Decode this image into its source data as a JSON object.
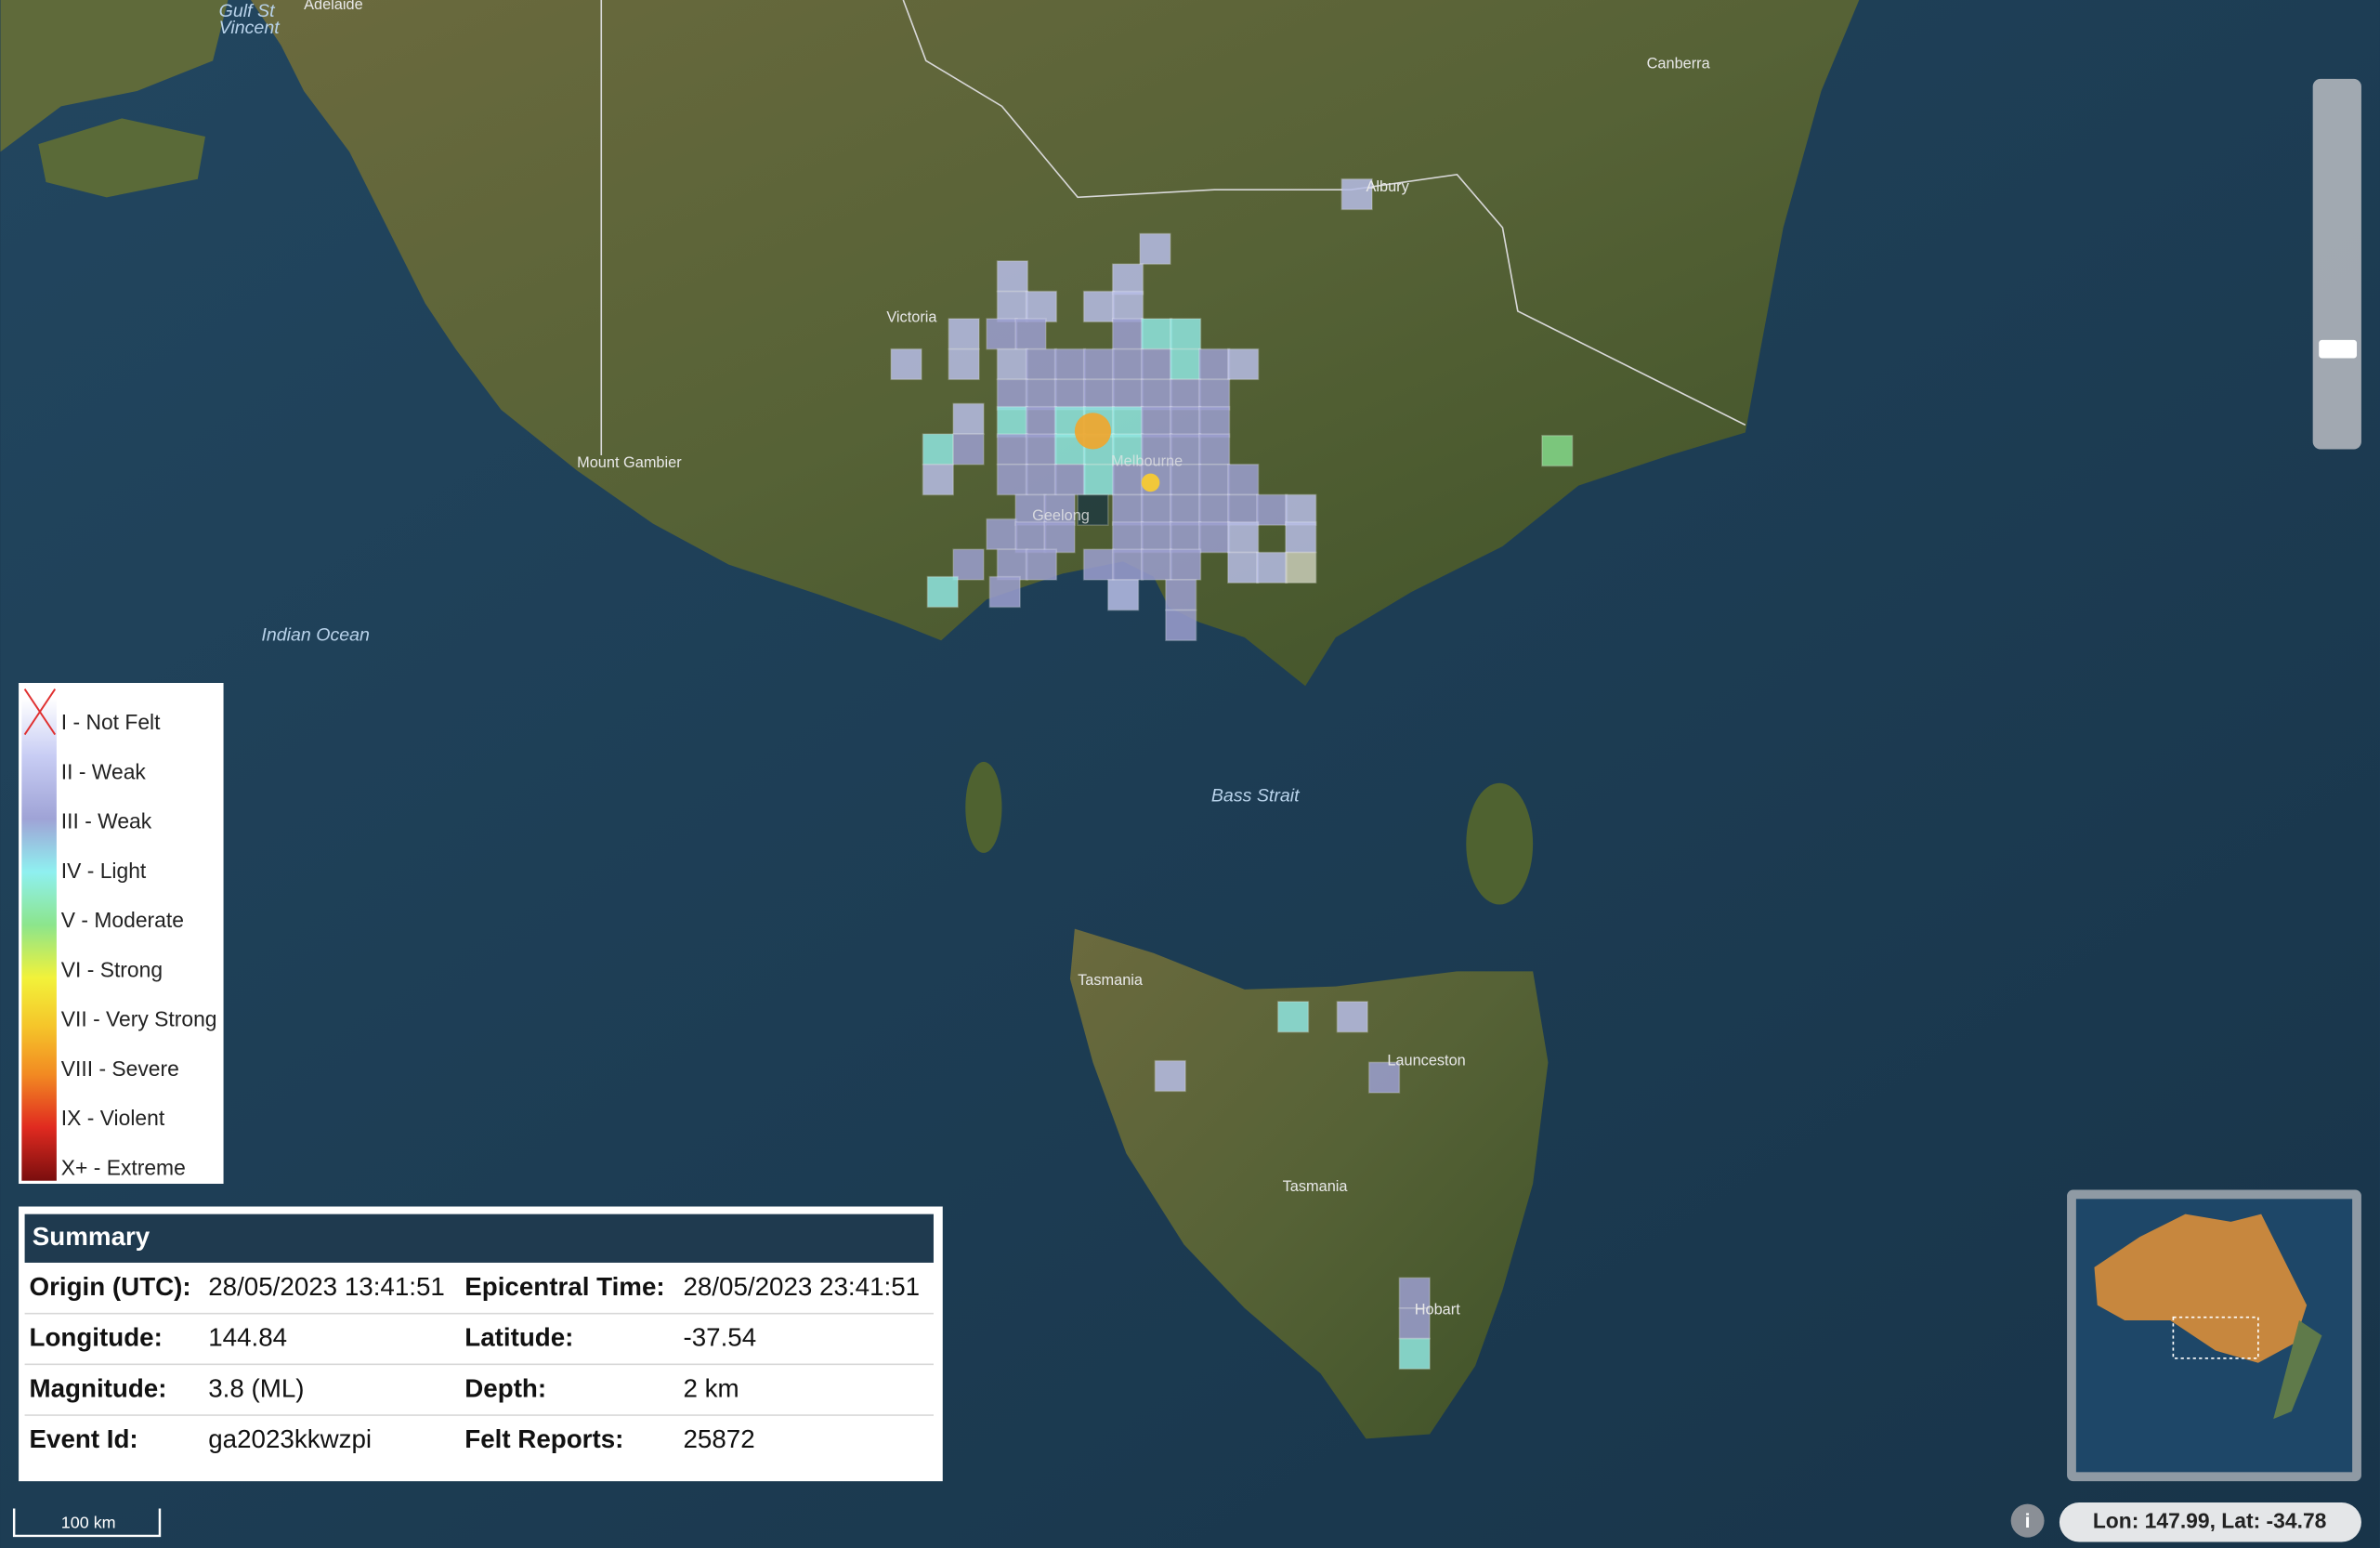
{
  "map": {
    "places": [
      {
        "label": "Adelaide"
      },
      {
        "label": [
          "Gulf St",
          "Vincent"
        ]
      },
      {
        "label": "Canberra"
      },
      {
        "label": "Albury"
      },
      {
        "label": "Victoria"
      },
      {
        "label": "Mount Gambier"
      },
      {
        "label": "Melbourne"
      },
      {
        "label": "Geelong"
      },
      {
        "label": "Indian Ocean"
      },
      {
        "label": "Bass Strait"
      },
      {
        "label": "Tasmania"
      },
      {
        "label": "Launceston"
      },
      {
        "label": "Tasmania"
      },
      {
        "label": "Hobart"
      }
    ]
  },
  "legend": {
    "items": [
      "I - Not Felt",
      "II - Weak",
      "III - Weak",
      "IV - Light",
      "V - Moderate",
      "VI - Strong",
      "VII - Very Strong",
      "VIII - Severe",
      "IX - Violent",
      "X+ - Extreme"
    ]
  },
  "summary": {
    "title": "Summary",
    "rows": [
      [
        "Origin (UTC):",
        "28/05/2023 13:41:51",
        "Epicentral Time:",
        "28/05/2023 23:41:51"
      ],
      [
        "Longitude:",
        "144.84",
        "Latitude:",
        "-37.54"
      ],
      [
        "Magnitude:",
        "3.8 (ML)",
        "Depth:",
        "2 km"
      ],
      [
        "Event Id:",
        "ga2023kkwzpi",
        "Felt Reports:",
        "25872"
      ]
    ]
  },
  "scale_bar": "100 km",
  "info_button": "i",
  "coordinates": "Lon: 147.99, Lat: -34.78"
}
